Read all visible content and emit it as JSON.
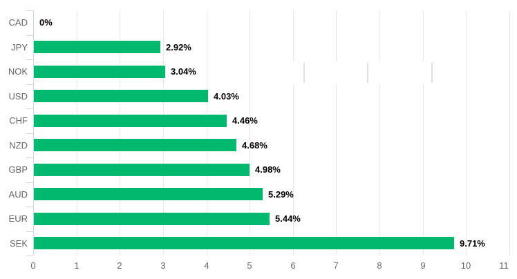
{
  "chart_data": {
    "type": "bar",
    "orientation": "horizontal",
    "title": "",
    "categories": [
      "CAD",
      "JPY",
      "NOK",
      "USD",
      "CHF",
      "NZD",
      "GBP",
      "AUD",
      "EUR",
      "SEK"
    ],
    "values": [
      0,
      2.92,
      3.04,
      4.03,
      4.46,
      4.68,
      4.98,
      5.29,
      5.44,
      9.71
    ],
    "value_labels": [
      "0%",
      "2.92%",
      "3.04%",
      "4.03%",
      "4.46%",
      "4.68%",
      "4.98%",
      "5.29%",
      "5.44%",
      "9.71%"
    ],
    "x_tick_labels": [
      "0",
      "1",
      "2",
      "3",
      "4",
      "5",
      "6",
      "7",
      "8",
      "9",
      "10",
      "11"
    ],
    "xlim": [
      0,
      11
    ],
    "grid": true,
    "legend": false,
    "colors": {
      "bar": "#00b96e",
      "gridline": "#e6e6e6",
      "axis_line": "#ccd6eb",
      "category_label": "#666666",
      "tick_label": "#666666",
      "value_label": "#000000"
    }
  }
}
